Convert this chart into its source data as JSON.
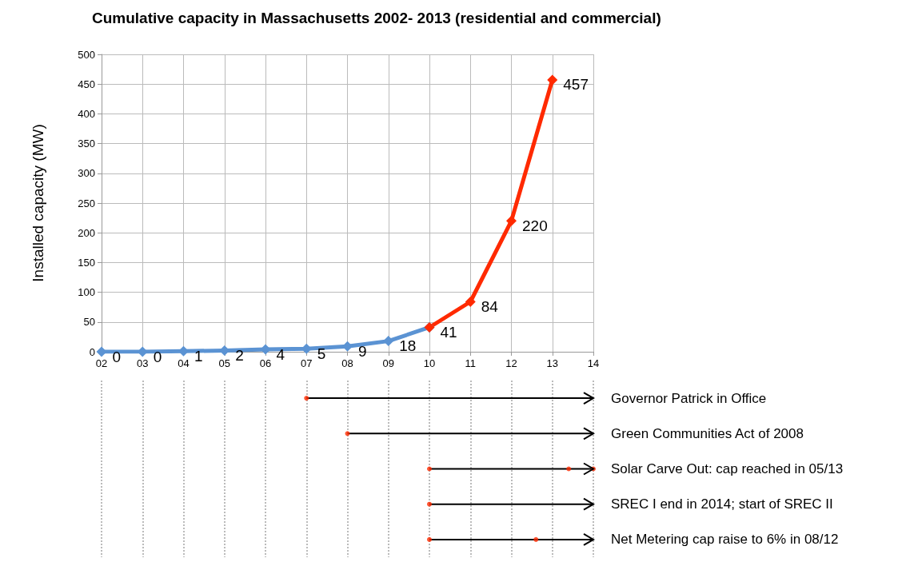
{
  "chart_data": [
    {
      "type": "line",
      "title": "Cumulative capacity in Massachusetts 2002- 2013 (residential and commercial)",
      "ylabel": "Installed capacity (MW)",
      "xlim": [
        2,
        14
      ],
      "xticks": [
        {
          "value": 2,
          "label": "02"
        },
        {
          "value": 3,
          "label": "03"
        },
        {
          "value": 4,
          "label": "04"
        },
        {
          "value": 5,
          "label": "05"
        },
        {
          "value": 6,
          "label": "06"
        },
        {
          "value": 7,
          "label": "07"
        },
        {
          "value": 8,
          "label": "08"
        },
        {
          "value": 9,
          "label": "09"
        },
        10,
        11,
        12,
        13,
        14
      ],
      "ylim": [
        0,
        500
      ],
      "yticks": [
        0,
        50,
        100,
        150,
        200,
        250,
        300,
        350,
        400,
        450,
        500
      ],
      "grid": true,
      "marker": "diamond",
      "series": [
        {
          "color": "#5b93d3",
          "x": [
            2,
            3,
            4,
            5,
            6,
            7,
            8,
            9,
            10
          ],
          "values": [
            0,
            0,
            1,
            2,
            4,
            5,
            9,
            18,
            41
          ],
          "value_labels": [
            "0",
            "0",
            "1",
            "2",
            "4",
            "5",
            "9",
            "18",
            null
          ]
        },
        {
          "color": "#ff2a00",
          "x": [
            10,
            11,
            12,
            13
          ],
          "values": [
            41,
            84,
            220,
            457
          ],
          "value_labels": [
            "41",
            "84",
            "220",
            "457"
          ]
        }
      ]
    },
    {
      "type": "bar",
      "orientation": "horizontal",
      "categories": [
        "Governor Patrick in Office",
        "Green Communities Act of 2008",
        "Solar Carve Out: cap reached in 05/13",
        "SREC I end in 2014; start of SREC II",
        "Net Metering cap raise to 6% in 08/12"
      ],
      "xlim": [
        2,
        14
      ],
      "xticks": [
        2,
        3,
        4,
        5,
        6,
        7,
        8,
        9,
        10,
        11,
        12,
        13,
        14
      ],
      "tick_labels": "y",
      "grid": "x",
      "series": [
        {
          "color": "#000000",
          "base": [
            7,
            8,
            10,
            10,
            10
          ],
          "values": [
            7,
            6,
            4,
            4,
            4
          ]
        },
        {
          "type": "scatter",
          "color": "#ff2a00",
          "x": [
            "Governor Patrick in Office",
            "Green Communities Act of 2008",
            "Solar Carve Out: cap reached in 05/13",
            "Solar Carve Out: cap reached in 05/13",
            "Solar Carve Out: cap reached in 05/13",
            "SREC I end in 2014; start of SREC II",
            "Net Metering cap raise to 6% in 08/12",
            "Net Metering cap raise to 6% in 08/12"
          ],
          "values": [
            7,
            8,
            10,
            13.4,
            14,
            10,
            10,
            12.6
          ]
        }
      ]
    }
  ]
}
